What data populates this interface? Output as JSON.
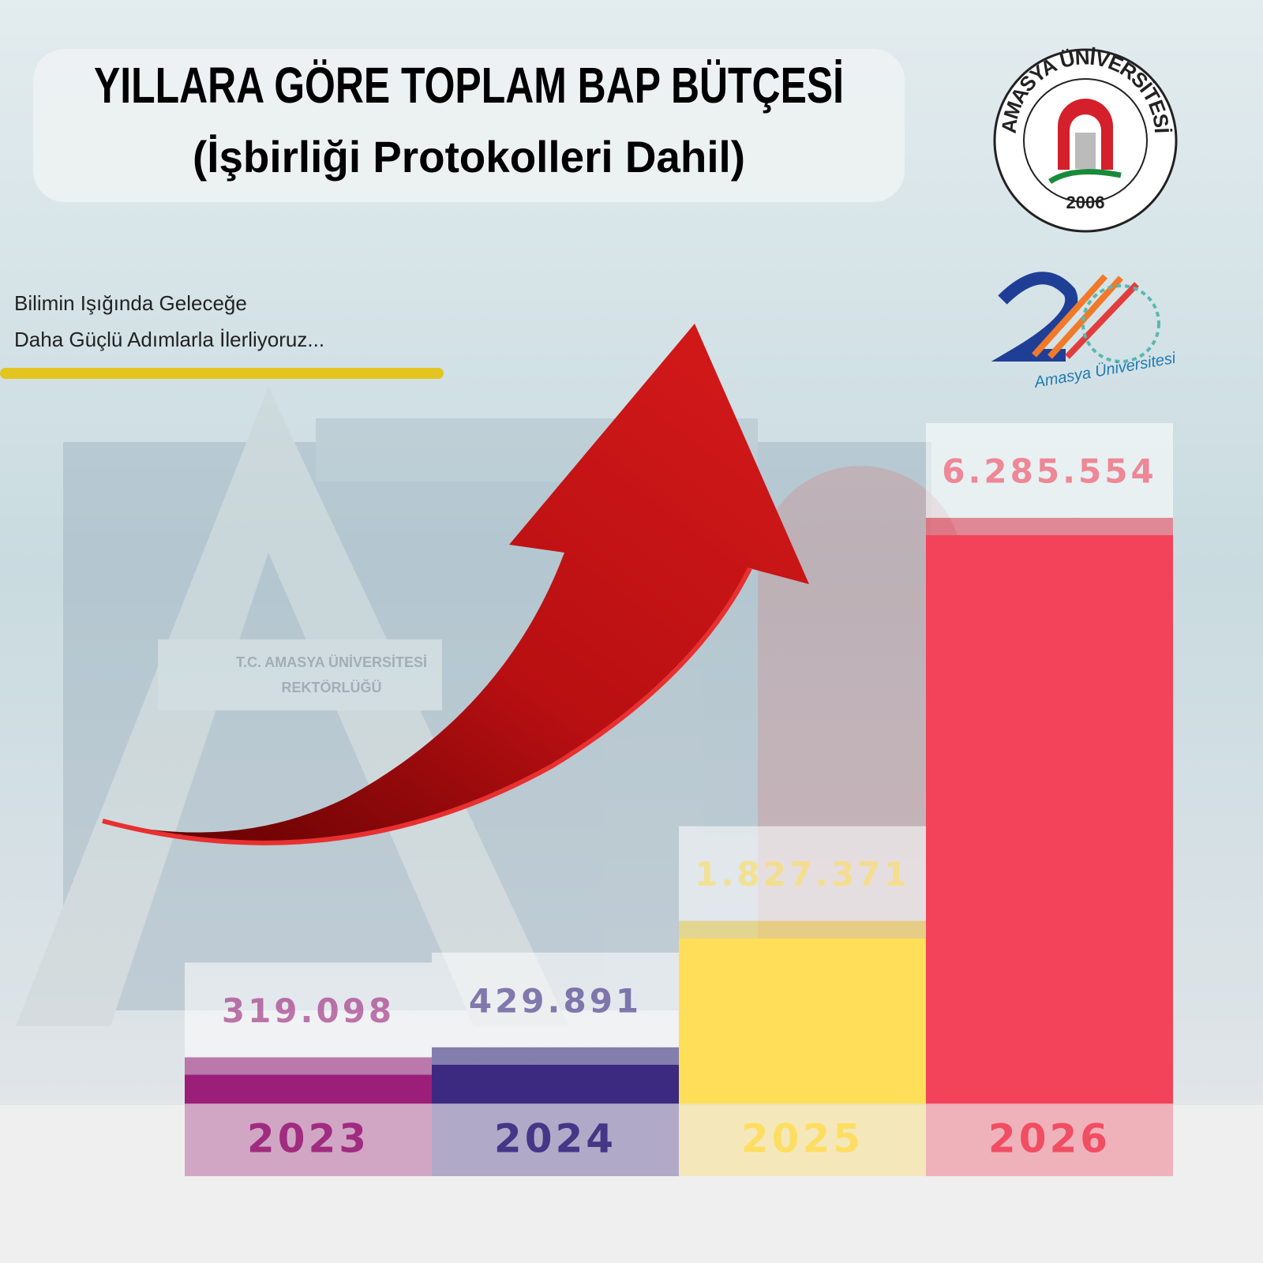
{
  "chart_data": {
    "type": "bar",
    "title": "YILLARA GÖRE TOPLAM BAP BÜTÇESİ",
    "subtitle": "(İşbirliği Protokolleri Dahil)",
    "tagline": [
      "Bilimin Işığında Geleceğe",
      "Daha Güçlü Adımlarla İlerliyoruz..."
    ],
    "categories": [
      "2023",
      "2024",
      "2025",
      "2026"
    ],
    "values": [
      319098,
      429891,
      1827371,
      6285554
    ],
    "value_labels": [
      "319.098",
      "429.891",
      "1.827.371",
      "6.285.554"
    ],
    "colors": [
      "#9b1f78",
      "#3b2a80",
      "#ffde5a",
      "#f2435a"
    ]
  },
  "logos": {
    "seal_text": "AMASYA ÜNİVERSİTESİ",
    "seal_year": "2006",
    "anniversary_text": "Amasya Üniversitesi"
  },
  "background_sign": [
    "T.C. AMASYA ÜNİVERSİTESİ",
    "REKTÖRLÜĞÜ"
  ]
}
